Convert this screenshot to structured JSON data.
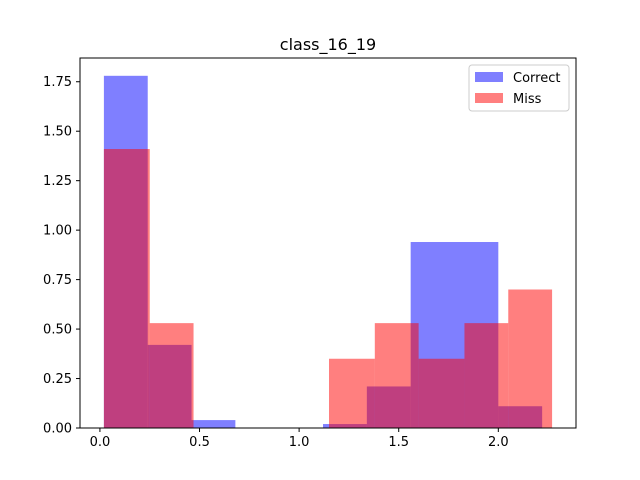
{
  "chart_data": {
    "type": "histogram",
    "title": "class_16_19",
    "xlabel": "",
    "ylabel": "",
    "xlim": [
      -0.1,
      2.39
    ],
    "ylim": [
      0,
      1.87
    ],
    "xticks": [
      0.0,
      0.5,
      1.0,
      1.5,
      2.0
    ],
    "xtick_labels": [
      "0.0",
      "0.5",
      "1.0",
      "1.5",
      "2.0"
    ],
    "yticks": [
      0.0,
      0.25,
      0.5,
      0.75,
      1.0,
      1.25,
      1.5,
      1.75
    ],
    "ytick_labels": [
      "0.00",
      "0.25",
      "0.50",
      "0.75",
      "1.00",
      "1.25",
      "1.50",
      "1.75"
    ],
    "legend_position": "top-right",
    "series": [
      {
        "name": "Correct",
        "color": "#0000ff",
        "alpha": 0.5,
        "bins": [
          {
            "x0": 0.02,
            "x1": 0.24,
            "value": 1.78
          },
          {
            "x0": 0.24,
            "x1": 0.46,
            "value": 0.42
          },
          {
            "x0": 0.46,
            "x1": 0.68,
            "value": 0.04
          },
          {
            "x0": 0.68,
            "x1": 0.9,
            "value": 0.0
          },
          {
            "x0": 0.9,
            "x1": 1.12,
            "value": 0.0
          },
          {
            "x0": 1.12,
            "x1": 1.34,
            "value": 0.02
          },
          {
            "x0": 1.34,
            "x1": 1.56,
            "value": 0.21
          },
          {
            "x0": 1.56,
            "x1": 2.0,
            "value": 0.94
          },
          {
            "x0": 2.0,
            "x1": 2.22,
            "value": 0.11
          }
        ]
      },
      {
        "name": "Miss",
        "color": "#ff0000",
        "alpha": 0.5,
        "bins": [
          {
            "x0": 0.02,
            "x1": 0.25,
            "value": 1.41
          },
          {
            "x0": 0.25,
            "x1": 0.47,
            "value": 0.53
          },
          {
            "x0": 1.15,
            "x1": 1.38,
            "value": 0.35
          },
          {
            "x0": 1.38,
            "x1": 1.6,
            "value": 0.53
          },
          {
            "x0": 1.6,
            "x1": 1.83,
            "value": 0.35
          },
          {
            "x0": 1.83,
            "x1": 2.05,
            "value": 0.53
          },
          {
            "x0": 2.05,
            "x1": 2.27,
            "value": 0.7
          }
        ]
      }
    ]
  }
}
